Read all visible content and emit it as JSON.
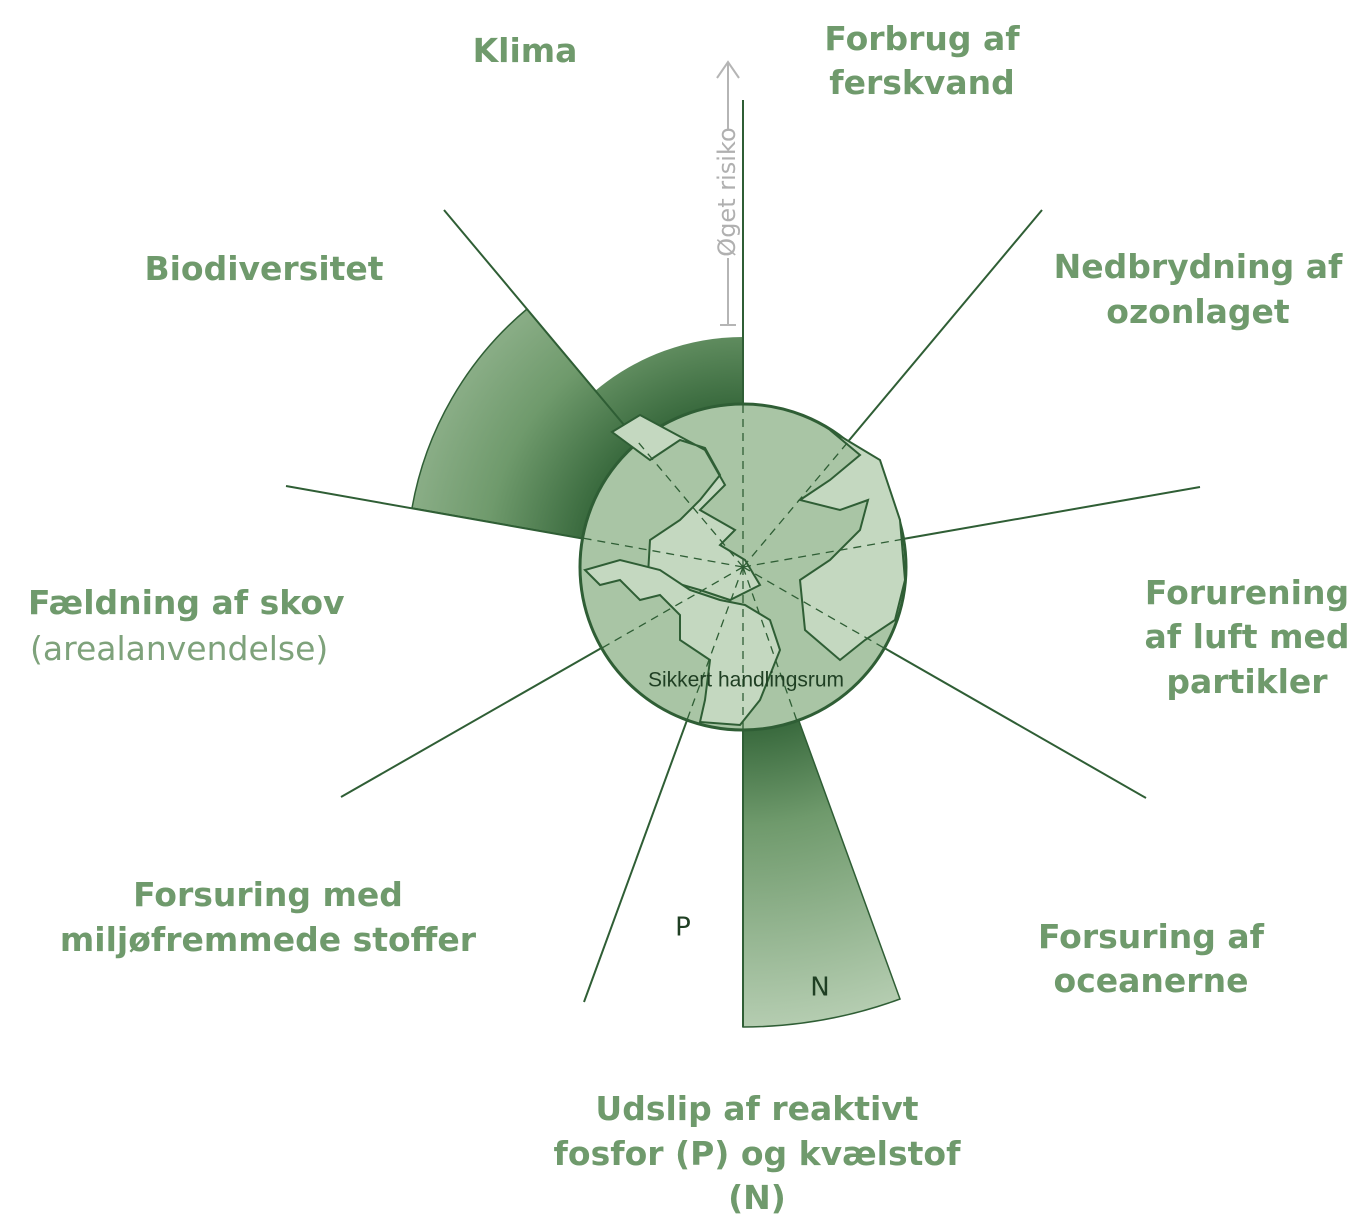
{
  "axis_label": "Øget risiko",
  "safe_space_label": "Sikkert handlingsrum",
  "sublabels": {
    "phosphorus": "P",
    "nitrogen": "N"
  },
  "boundaries": [
    {
      "lines": [
        "Klima"
      ]
    },
    {
      "lines": [
        "Forbrug af",
        "ferskvand"
      ]
    },
    {
      "lines": [
        "Biodiversitet"
      ]
    },
    {
      "lines": [
        "Nedbrydning af",
        "ozonlaget"
      ]
    },
    {
      "lines": [
        "Fældning af skov"
      ],
      "note": "(arealanvendelse)"
    },
    {
      "lines": [
        "Forurening",
        "af luft med",
        "partikler"
      ]
    },
    {
      "lines": [
        "Forsuring med",
        "miljøfremmede stoffer"
      ]
    },
    {
      "lines": [
        "Forsuring af",
        "oceanerne"
      ]
    },
    {
      "lines": [
        "Udslip af reaktivt",
        "fosfor (P) og kvælstof",
        "(N)"
      ]
    }
  ]
}
